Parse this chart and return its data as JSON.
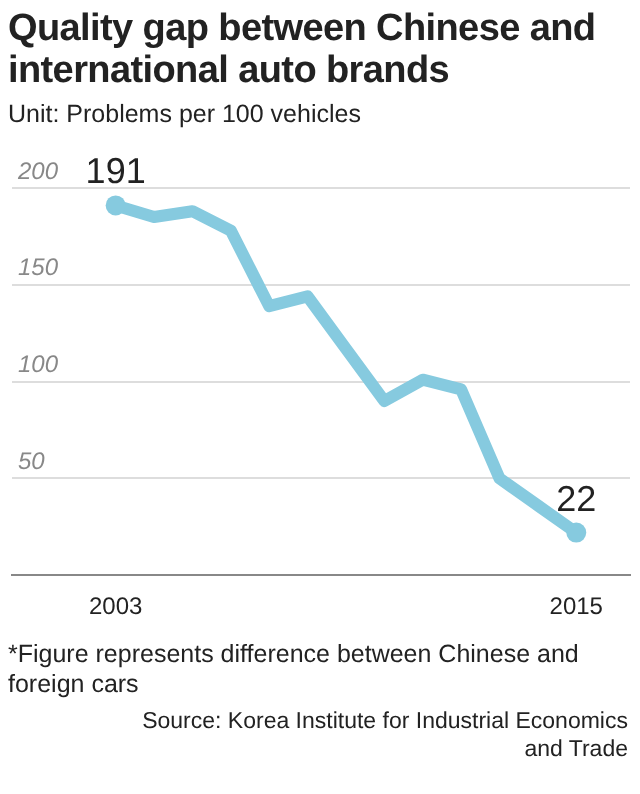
{
  "chart_data": {
    "type": "line",
    "title": "Quality gap between Chinese and international auto brands",
    "subtitle": "Unit: Problems per 100 vehicles",
    "x": [
      2003,
      2004,
      2005,
      2006,
      2007,
      2008,
      2009,
      2010,
      2011,
      2012,
      2013,
      2014,
      2015
    ],
    "series": [
      {
        "color": "#86cadf",
        "values": [
          191,
          185,
          188,
          178,
          139,
          144,
          117,
          90,
          101,
          96,
          50,
          36,
          22
        ],
        "value_labels": [
          "191",
          null,
          null,
          null,
          null,
          null,
          null,
          null,
          null,
          null,
          null,
          null,
          "22"
        ]
      }
    ],
    "xlim": [
      2000.3,
      2016.4
    ],
    "xticks": [
      2003,
      2015
    ],
    "ylim": [
      0,
      200
    ],
    "yticks": [
      50,
      100,
      150,
      200
    ],
    "grid": "y",
    "marker": "none",
    "line_style": "solid",
    "annotations": [
      "*Figure represents difference between Chinese and foreign cars",
      "Source: Korea Institute for Industrial Economics and Trade"
    ]
  }
}
